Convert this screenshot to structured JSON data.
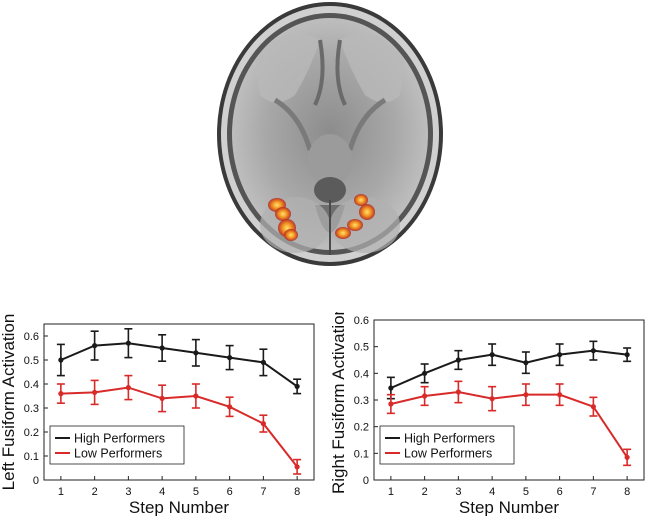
{
  "colors": {
    "high": "#1a1a1a",
    "low": "#d92a2a",
    "axis": "#222222"
  },
  "chart_data": [
    {
      "type": "line",
      "xlabel": "Step Number",
      "ylabel": "Left Fusiform Activation",
      "x": [
        1,
        2,
        3,
        4,
        5,
        6,
        7,
        8
      ],
      "xlim": [
        0.5,
        8.5
      ],
      "ylim": [
        0,
        0.65
      ],
      "yticks": [
        0,
        0.1,
        0.2,
        0.3,
        0.4,
        0.5,
        0.6
      ],
      "ytick_labels": [
        "0",
        "0.1",
        "0.2",
        "0.3",
        "0.4",
        "0.5",
        "0.6"
      ],
      "legend_position": "lower-left",
      "series": [
        {
          "name": "High Performers",
          "values": [
            0.5,
            0.56,
            0.57,
            0.55,
            0.53,
            0.51,
            0.49,
            0.39
          ],
          "errors": [
            0.065,
            0.06,
            0.06,
            0.055,
            0.055,
            0.05,
            0.055,
            0.03
          ]
        },
        {
          "name": "Low Performers",
          "values": [
            0.36,
            0.365,
            0.385,
            0.34,
            0.35,
            0.305,
            0.235,
            0.055
          ],
          "errors": [
            0.04,
            0.05,
            0.05,
            0.055,
            0.05,
            0.04,
            0.035,
            0.03
          ]
        }
      ]
    },
    {
      "type": "line",
      "xlabel": "Step Number",
      "ylabel": "Right Fusiform Activation",
      "x": [
        1,
        2,
        3,
        4,
        5,
        6,
        7,
        8
      ],
      "xlim": [
        0.5,
        8.5
      ],
      "ylim": [
        0,
        0.6
      ],
      "yticks": [
        0,
        0.1,
        0.2,
        0.3,
        0.4,
        0.5,
        0.6
      ],
      "ytick_labels": [
        "0",
        "0.1",
        "0.2",
        "0.3",
        "0.4",
        "0.5",
        "0.6"
      ],
      "legend_position": "lower-left",
      "series": [
        {
          "name": "High Performers",
          "values": [
            0.345,
            0.4,
            0.45,
            0.47,
            0.44,
            0.47,
            0.485,
            0.47
          ],
          "errors": [
            0.04,
            0.035,
            0.035,
            0.04,
            0.04,
            0.04,
            0.035,
            0.025
          ]
        },
        {
          "name": "Low Performers",
          "values": [
            0.285,
            0.315,
            0.33,
            0.305,
            0.32,
            0.32,
            0.275,
            0.085
          ],
          "errors": [
            0.035,
            0.035,
            0.04,
            0.045,
            0.04,
            0.04,
            0.035,
            0.03
          ]
        }
      ]
    }
  ]
}
